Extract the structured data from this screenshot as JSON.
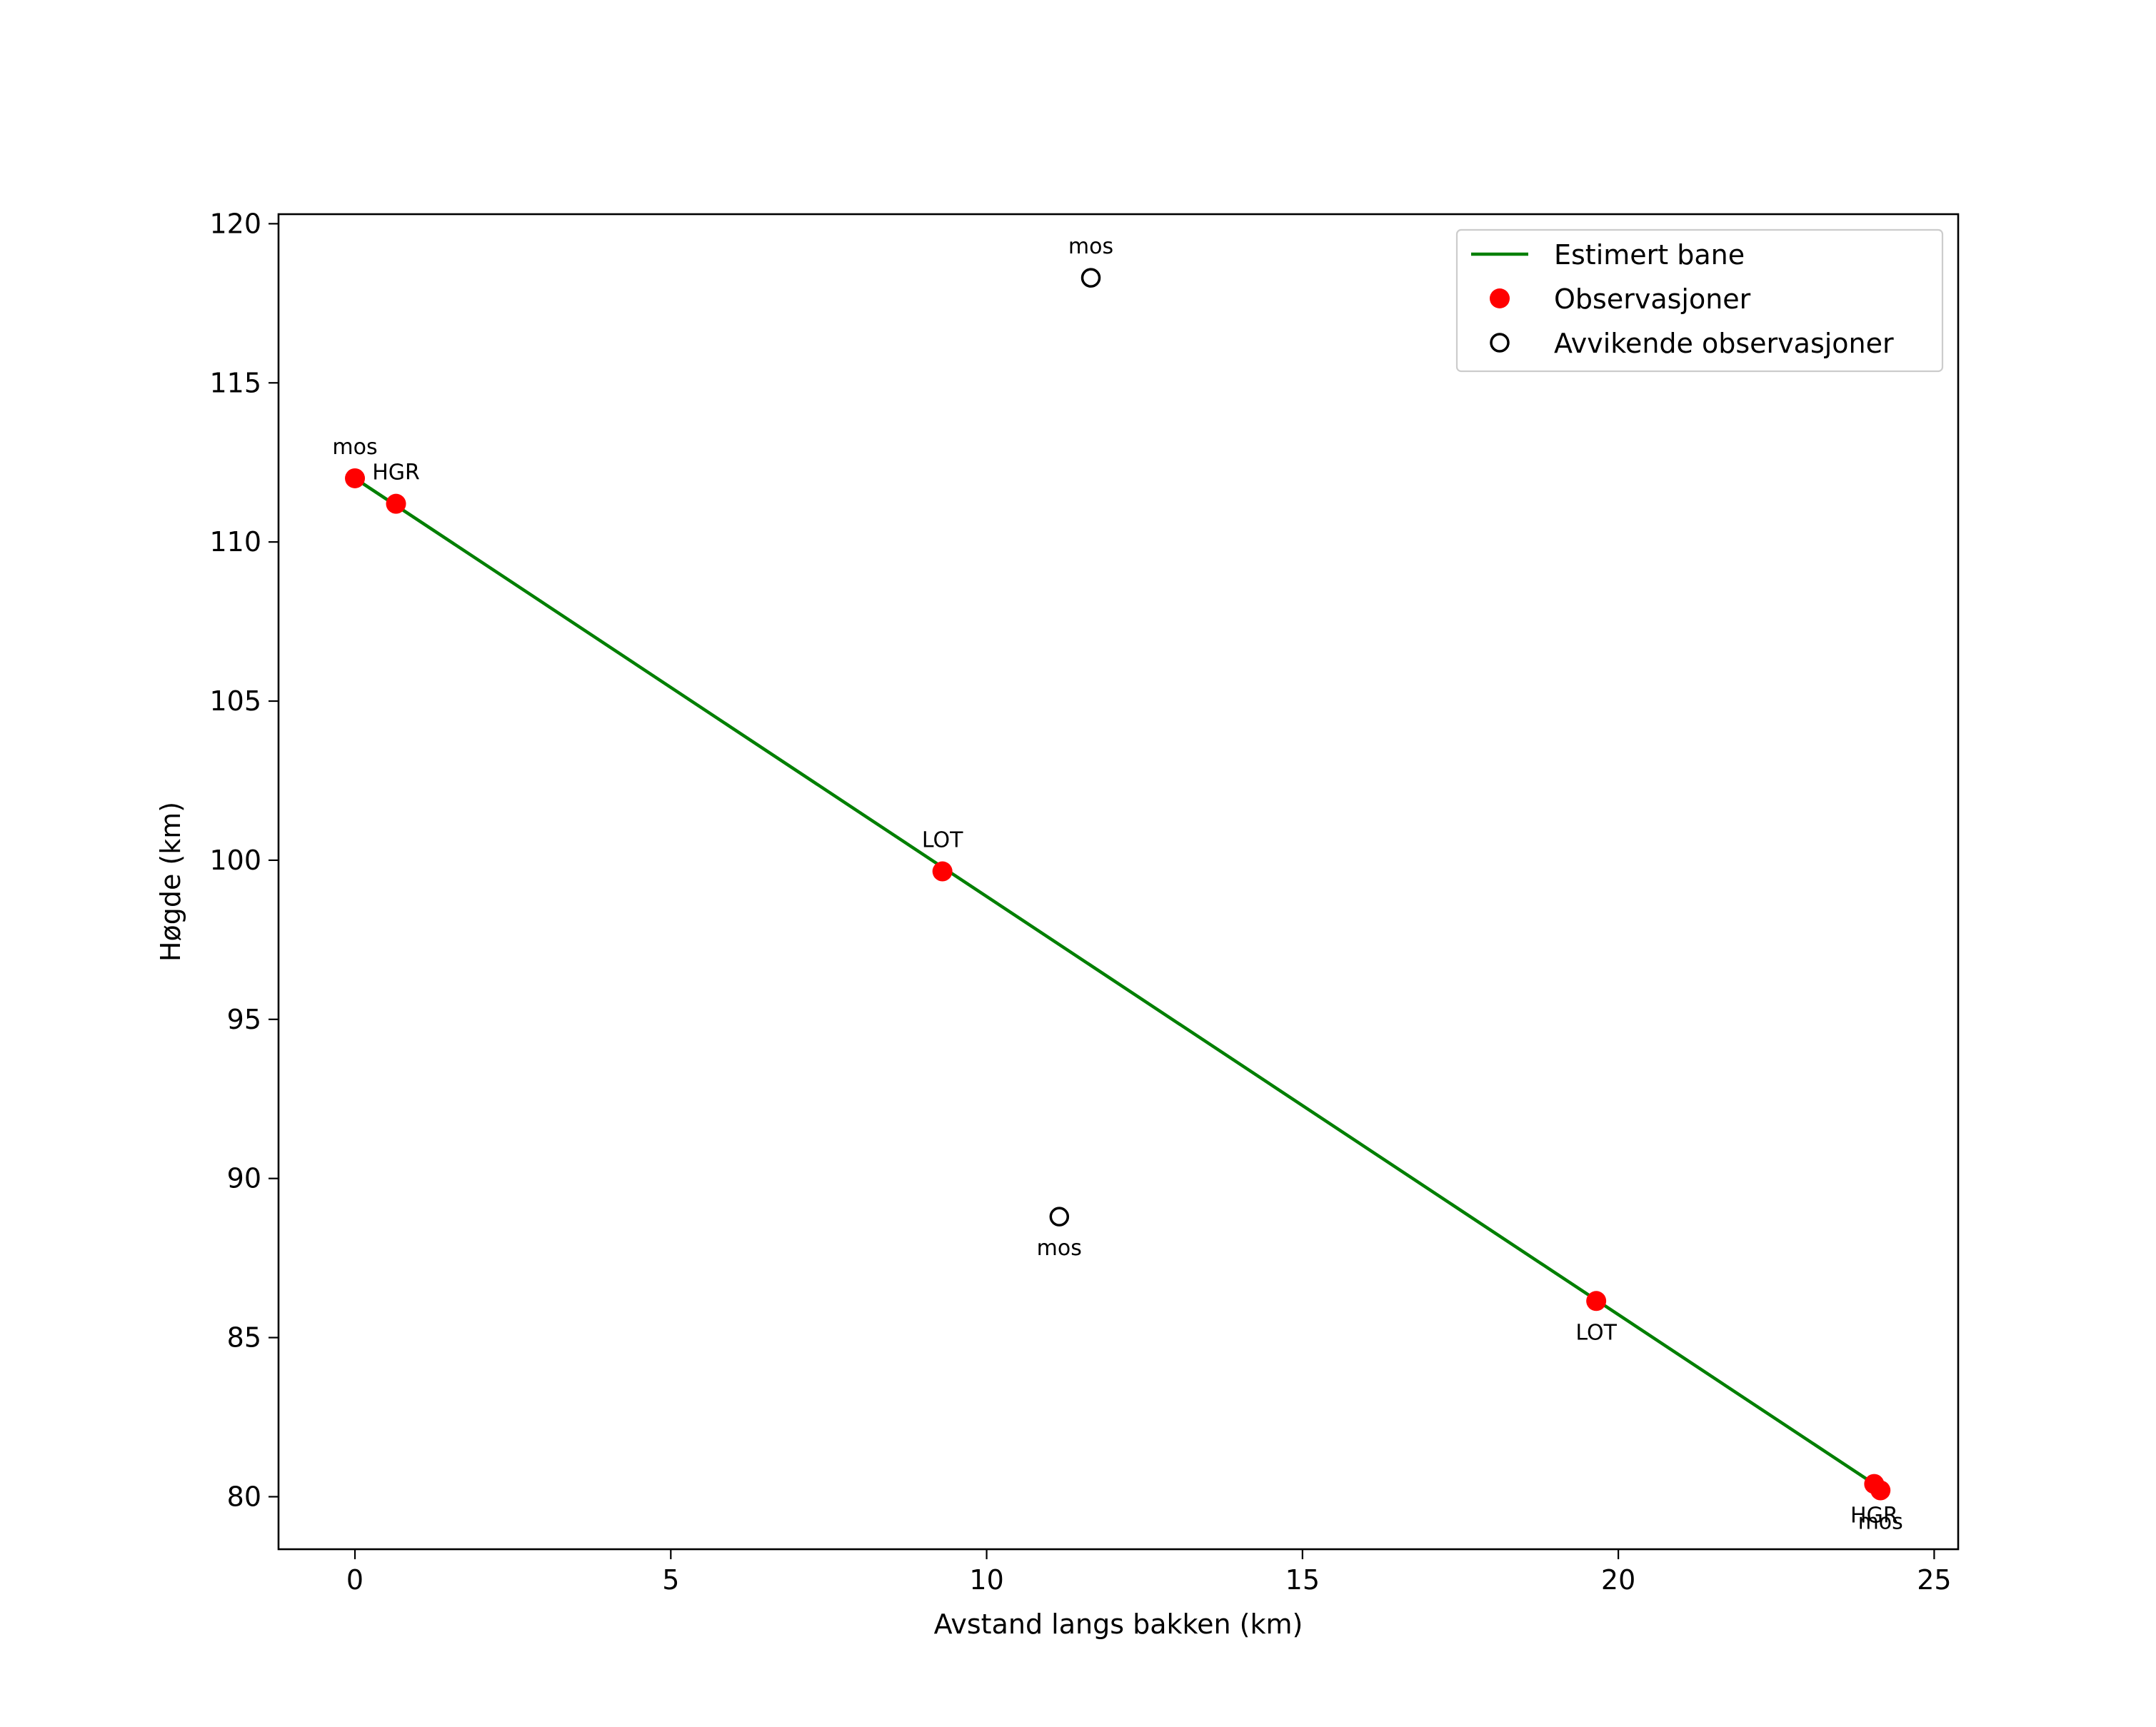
{
  "chart_data": {
    "type": "line",
    "title": "",
    "xlabel": "Avstand langs bakken (km)",
    "ylabel": "Høgde (km)",
    "xlim": [
      -1.21,
      25.38
    ],
    "ylim": [
      78.35,
      120.3
    ],
    "xticks": [
      0,
      5,
      10,
      15,
      20,
      25
    ],
    "yticks": [
      80,
      85,
      90,
      95,
      100,
      105,
      110,
      115,
      120
    ],
    "grid": false,
    "legend_position": "top-right",
    "colors": {
      "line": "#007f00",
      "observations": "#ff0000",
      "outliers": "#000000"
    },
    "series": [
      {
        "name": "Estimert bane",
        "kind": "line",
        "x": [
          0.0,
          24.05
        ],
        "y": [
          112.0,
          80.4
        ]
      },
      {
        "name": "Observasjoner",
        "kind": "scatter-filled",
        "points": [
          {
            "x": 0.0,
            "y": 112.0,
            "label": "mos",
            "label_pos": "above"
          },
          {
            "x": 0.65,
            "y": 111.2,
            "label": "HGR",
            "label_pos": "above"
          },
          {
            "x": 9.3,
            "y": 99.65,
            "label": "LOT",
            "label_pos": "above"
          },
          {
            "x": 19.65,
            "y": 86.15,
            "label": "LOT",
            "label_pos": "below"
          },
          {
            "x": 24.05,
            "y": 80.4,
            "label": "HGR",
            "label_pos": "below"
          },
          {
            "x": 24.15,
            "y": 80.2,
            "label": "mos",
            "label_pos": "below"
          }
        ]
      },
      {
        "name": "Avvikende observasjoner",
        "kind": "scatter-open",
        "points": [
          {
            "x": 11.65,
            "y": 118.3,
            "label": "mos",
            "label_pos": "above"
          },
          {
            "x": 11.15,
            "y": 88.8,
            "label": "mos",
            "label_pos": "below"
          }
        ]
      }
    ]
  }
}
